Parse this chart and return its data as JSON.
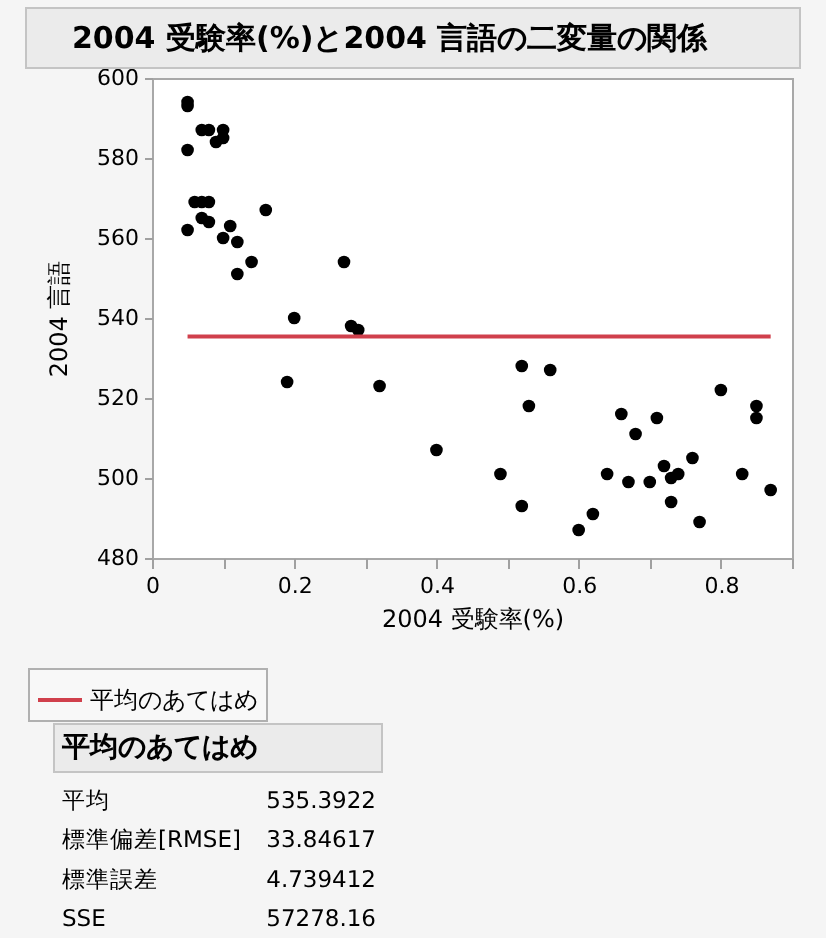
{
  "chart_data": {
    "type": "scatter",
    "title": "2004 受験率(%)と2004 言語の二変量の関係",
    "xlabel": "2004 受験率(%)",
    "ylabel": "2004 言語",
    "series": [
      {
        "color": "#000000",
        "marker": "circle",
        "x": [
          0.05,
          0.05,
          0.07,
          0.08,
          0.1,
          0.1,
          0.09,
          0.05,
          0.06,
          0.07,
          0.08,
          0.16,
          0.07,
          0.08,
          0.11,
          0.05,
          0.1,
          0.12,
          0.14,
          0.27,
          0.12,
          0.2,
          0.28,
          0.29,
          0.19,
          0.32,
          0.4,
          0.52,
          0.56,
          0.53,
          0.8,
          0.85,
          0.85,
          0.66,
          0.71,
          0.68,
          0.49,
          0.64,
          0.72,
          0.76,
          0.67,
          0.7,
          0.73,
          0.74,
          0.83,
          0.87,
          0.52,
          0.73,
          0.62,
          0.6,
          0.77
        ],
        "values": [
          594,
          593,
          587,
          587,
          587,
          585,
          584,
          582,
          569,
          569,
          569,
          567,
          565,
          564,
          563,
          562,
          560,
          559,
          554,
          554,
          551,
          540,
          538,
          537,
          524,
          523,
          507,
          528,
          527,
          518,
          522,
          518,
          515,
          516,
          515,
          511,
          501,
          501,
          503,
          505,
          499,
          499,
          500,
          501,
          501,
          497,
          493,
          494,
          491,
          487,
          489
        ]
      },
      {
        "type": "line",
        "name": "平均のあてはめ",
        "color": "#d0404c",
        "line_style": "solid",
        "x": [
          0.05,
          0.87
        ],
        "values": [
          535.3922,
          535.3922
        ]
      }
    ],
    "xlim": [
      0,
      0.9
    ],
    "xticks": [
      0,
      {
        "value": 0.1,
        "label": null
      },
      0.2,
      {
        "value": 0.3,
        "label": null
      },
      0.4,
      {
        "value": 0.5,
        "label": null
      },
      0.6,
      {
        "value": 0.7,
        "label": null
      },
      0.8,
      {
        "value": 0.9,
        "label": null
      }
    ],
    "ylim": [
      480,
      600
    ],
    "yticks": [
      480,
      500,
      520,
      540,
      560,
      580,
      600
    ],
    "grid": false,
    "legend": "bottom",
    "annotations": [
      "平均のあてはめ",
      "平均",
      "535.3922",
      "標準偏差[RMSE]",
      "33.84617",
      "標準誤差",
      "4.739412",
      "SSE",
      "57278.16"
    ]
  }
}
